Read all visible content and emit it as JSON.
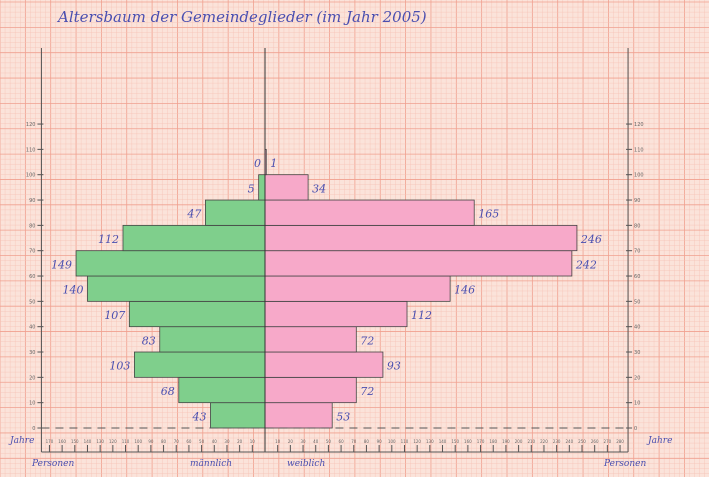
{
  "chart_data": {
    "type": "bar",
    "orientation": "horizontal-pyramid",
    "title": "Altersbaum der Gemeindeglieder (im Jahr 2005)",
    "ylabel": "Jahre",
    "xlabel_left": "Personen",
    "xlabel_right": "Personen",
    "group_label_left": "männlich",
    "group_label_right": "weiblich",
    "age_groups": [
      "0-9",
      "10-19",
      "20-29",
      "30-39",
      "40-49",
      "50-59",
      "60-69",
      "70-79",
      "80-89",
      "90-99",
      "100-109"
    ],
    "series": [
      {
        "name": "männlich",
        "color": "#7fcf8c",
        "values": [
          43,
          68,
          103,
          83,
          107,
          140,
          149,
          112,
          47,
          5,
          0
        ]
      },
      {
        "name": "weiblich",
        "color": "#f7a9c9",
        "values": [
          53,
          72,
          93,
          72,
          112,
          146,
          242,
          246,
          165,
          34,
          1
        ]
      }
    ],
    "ylim": [
      0,
      120
    ],
    "yticks": [
      0,
      10,
      20,
      30,
      40,
      50,
      60,
      70,
      80,
      90,
      100,
      110,
      120
    ],
    "xlim_left": [
      0,
      170
    ],
    "xlim_right": [
      0,
      280
    ],
    "xtick_step": 10,
    "grid": true,
    "background": "graph paper"
  }
}
